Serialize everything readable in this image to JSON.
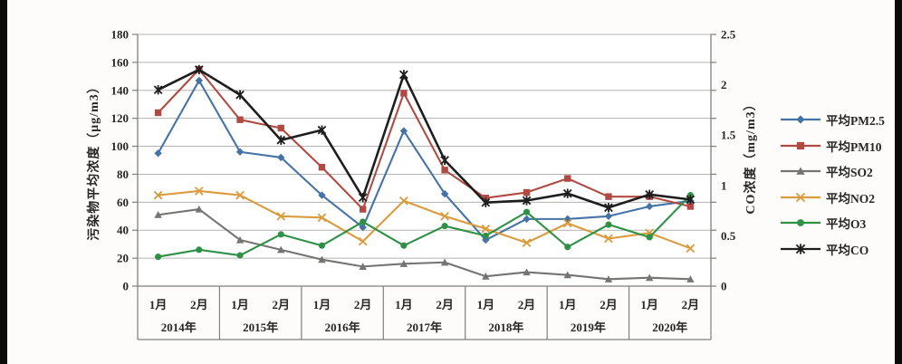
{
  "chart_data": {
    "type": "line",
    "title": "",
    "grid": true,
    "legend_position": "right",
    "x_axis": {
      "years": [
        "2014年",
        "2015年",
        "2016年",
        "2017年",
        "2018年",
        "2019年",
        "2020年"
      ],
      "months_per_year": [
        "1月",
        "2月"
      ]
    },
    "left_axis": {
      "title": "污染物平均浓度（μg/m3）",
      "min": 0,
      "max": 180,
      "step": 20,
      "ticks": [
        "0",
        "20",
        "40",
        "60",
        "80",
        "100",
        "120",
        "140",
        "160",
        "180"
      ]
    },
    "right_axis": {
      "title": "CO浓度（mg/m3）",
      "min": 0,
      "max": 2.5,
      "step": 0.5,
      "ticks": [
        "0",
        "0.5",
        "1",
        "1.5",
        "2",
        "2.5"
      ]
    },
    "series": [
      {
        "name": "平均PM2.5",
        "axis": "left",
        "color": "#4573A7",
        "marker": "diamond",
        "values": [
          95,
          147,
          96,
          92,
          65,
          42,
          111,
          66,
          33,
          48,
          48,
          50,
          57,
          61
        ]
      },
      {
        "name": "平均PM10",
        "axis": "left",
        "color": "#B04A42",
        "marker": "square",
        "values": [
          124,
          155,
          119,
          113,
          85,
          55,
          138,
          83,
          63,
          67,
          77,
          64,
          64,
          57
        ]
      },
      {
        "name": "平均SO2",
        "axis": "left",
        "color": "#767472",
        "marker": "triangle",
        "values": [
          51,
          55,
          33,
          26,
          19,
          14,
          16,
          17,
          7,
          10,
          8,
          5,
          6,
          5
        ]
      },
      {
        "name": "平均NO2",
        "axis": "left",
        "color": "#DB9B3C",
        "marker": "x",
        "values": [
          65,
          68,
          65,
          50,
          49,
          32,
          61,
          50,
          41,
          31,
          45,
          34,
          38,
          27
        ]
      },
      {
        "name": "平均O3",
        "axis": "left",
        "color": "#2F9146",
        "marker": "circle",
        "values": [
          21,
          26,
          22,
          37,
          29,
          46,
          29,
          43,
          36,
          53,
          28,
          44,
          35,
          65
        ]
      },
      {
        "name": "平均CO",
        "axis": "right",
        "color": "#1E1E1E",
        "marker": "asterisk",
        "values": [
          1.95,
          2.15,
          1.9,
          1.45,
          1.55,
          0.88,
          2.1,
          1.25,
          0.83,
          0.85,
          0.92,
          0.78,
          0.91,
          0.86
        ]
      }
    ]
  }
}
